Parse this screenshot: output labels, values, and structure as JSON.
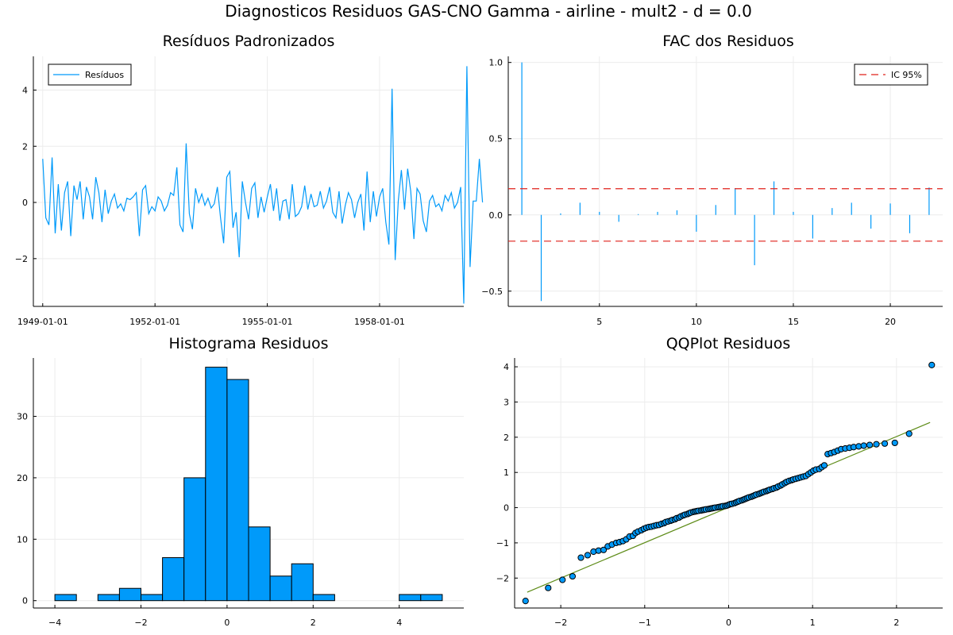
{
  "page_title": "Diagnosticos Residuos  GAS-CNO Gamma - airline - mult2 - d = 0.0",
  "colors": {
    "series": "#009AFA",
    "ci": "#E26F46",
    "ci_red": "#E0201B",
    "qq_line": "#5E8C18",
    "grid": "#ECECEC"
  },
  "chart_data": [
    {
      "id": "residuals",
      "type": "line",
      "title": "Resíduos Padronizados",
      "legend": {
        "entries": [
          "Resíduos"
        ],
        "position": "top-left"
      },
      "x_tick_labels": [
        "1949-01-01",
        "1952-01-01",
        "1955-01-01",
        "1958-01-01"
      ],
      "x_tick_index": [
        0,
        36,
        72,
        108
      ],
      "x_range": [
        -3,
        135
      ],
      "y_ticks": [
        -2,
        0,
        2,
        4
      ],
      "y_tick_labels": [
        "−2",
        "0",
        "2",
        "4"
      ],
      "ylim": [
        -3.7,
        5.2
      ],
      "grid": true,
      "values": [
        1.55,
        -0.55,
        -0.8,
        1.6,
        -1.1,
        0.65,
        -1.0,
        0.35,
        0.75,
        -1.2,
        0.6,
        0.1,
        0.75,
        -0.6,
        0.55,
        0.2,
        -0.6,
        0.9,
        0.35,
        -0.7,
        0.45,
        -0.4,
        0.05,
        0.3,
        -0.2,
        -0.05,
        -0.3,
        0.15,
        0.1,
        0.2,
        0.35,
        -1.2,
        0.45,
        0.6,
        -0.4,
        -0.15,
        -0.3,
        0.2,
        0.05,
        -0.3,
        -0.1,
        0.35,
        0.25,
        1.25,
        -0.8,
        -1.05,
        2.1,
        -0.4,
        -0.95,
        0.5,
        0.0,
        0.3,
        -0.1,
        0.15,
        -0.2,
        -0.05,
        0.55,
        -0.55,
        -1.45,
        0.9,
        1.1,
        -0.9,
        -0.35,
        -1.95,
        0.75,
        0.0,
        -0.6,
        0.5,
        0.7,
        -0.55,
        0.2,
        -0.35,
        0.2,
        0.65,
        -0.3,
        0.5,
        -0.65,
        0.05,
        0.1,
        -0.6,
        0.65,
        -0.5,
        -0.4,
        -0.15,
        0.6,
        -0.25,
        0.3,
        -0.15,
        -0.1,
        0.4,
        -0.2,
        0.05,
        0.55,
        -0.35,
        -0.55,
        0.4,
        -0.75,
        -0.1,
        0.35,
        0.1,
        -0.55,
        0.0,
        0.3,
        -1.0,
        1.1,
        -0.7,
        0.4,
        -0.5,
        0.2,
        0.5,
        -0.7,
        -1.5,
        4.05,
        -2.05,
        0.05,
        1.15,
        -0.25,
        1.2,
        0.4,
        -1.3,
        0.5,
        0.3,
        -0.65,
        -1.05,
        0.05,
        0.25,
        -0.15,
        -0.05,
        -0.3,
        0.25,
        0.05,
        0.35,
        -0.2,
        0.0,
        0.55,
        -3.6,
        4.85,
        -2.3,
        0.05,
        0.05,
        1.55,
        0.0
      ],
      "series_name": "Resíduos"
    },
    {
      "id": "acf",
      "type": "bar",
      "title": "FAC dos Residuos",
      "legend": {
        "entries": [
          "IC 95%"
        ],
        "position": "top-right"
      },
      "lags": [
        1,
        2,
        3,
        4,
        5,
        6,
        7,
        8,
        9,
        10,
        11,
        12,
        13,
        14,
        15,
        16,
        17,
        18,
        19,
        20,
        21,
        22
      ],
      "values": [
        1.0,
        -0.565,
        0.01,
        0.08,
        0.02,
        -0.045,
        0.005,
        0.02,
        0.03,
        -0.11,
        0.065,
        0.175,
        -0.33,
        0.22,
        0.02,
        -0.155,
        0.045,
        0.08,
        -0.09,
        0.075,
        -0.12,
        0.18
      ],
      "ci": 0.172,
      "x_ticks": [
        5,
        10,
        15,
        20
      ],
      "y_ticks": [
        -0.5,
        0.0,
        0.5,
        1.0
      ],
      "y_tick_labels": [
        "−0.5",
        "0.0",
        "0.5",
        "1.0"
      ],
      "xlim": [
        0.3,
        22.7
      ],
      "ylim": [
        -0.6,
        1.04
      ],
      "grid": true
    },
    {
      "id": "histogram",
      "type": "bar",
      "title": "Histograma Residuos",
      "bins": [
        {
          "x0": -4.0,
          "x1": -3.5,
          "count": 1
        },
        {
          "x0": -3.5,
          "x1": -3.0,
          "count": 0
        },
        {
          "x0": -3.0,
          "x1": -2.5,
          "count": 1
        },
        {
          "x0": -2.5,
          "x1": -2.0,
          "count": 2
        },
        {
          "x0": -2.0,
          "x1": -1.5,
          "count": 1
        },
        {
          "x0": -1.5,
          "x1": -1.0,
          "count": 7
        },
        {
          "x0": -1.0,
          "x1": -0.5,
          "count": 20
        },
        {
          "x0": -0.5,
          "x1": 0.0,
          "count": 38
        },
        {
          "x0": 0.0,
          "x1": 0.5,
          "count": 36
        },
        {
          "x0": 0.5,
          "x1": 1.0,
          "count": 12
        },
        {
          "x0": 1.0,
          "x1": 1.5,
          "count": 4
        },
        {
          "x0": 1.5,
          "x1": 2.0,
          "count": 6
        },
        {
          "x0": 2.0,
          "x1": 2.5,
          "count": 1
        },
        {
          "x0": 2.5,
          "x1": 3.0,
          "count": 0
        },
        {
          "x0": 3.0,
          "x1": 3.5,
          "count": 0
        },
        {
          "x0": 3.5,
          "x1": 4.0,
          "count": 0
        },
        {
          "x0": 4.0,
          "x1": 4.5,
          "count": 1
        },
        {
          "x0": 4.5,
          "x1": 5.0,
          "count": 1
        }
      ],
      "x_ticks": [
        -4,
        -2,
        0,
        2,
        4
      ],
      "x_tick_labels": [
        "−4",
        "−2",
        "0",
        "2",
        "4"
      ],
      "y_ticks": [
        0,
        10,
        20,
        30
      ],
      "xlim": [
        -4.5,
        5.5
      ],
      "ylim": [
        -1.2,
        39.5
      ],
      "grid": true
    },
    {
      "id": "qqplot",
      "type": "scatter",
      "title": "QQPlot Residuos",
      "x_ticks": [
        -2,
        -1,
        0,
        1,
        2
      ],
      "x_tick_labels": [
        "−2",
        "−1",
        "0",
        "1",
        "2"
      ],
      "y_ticks": [
        -2,
        -1,
        0,
        1,
        2,
        3,
        4
      ],
      "y_tick_labels": [
        "−2",
        "−1",
        "0",
        "1",
        "2",
        "3",
        "4"
      ],
      "xlim": [
        -2.55,
        2.55
      ],
      "ylim": [
        -2.85,
        4.25
      ],
      "reference_line": {
        "x": [
          -2.4,
          2.4
        ],
        "y": [
          -2.4,
          2.42
        ]
      },
      "points": {
        "x": [
          -2.42,
          -2.15,
          -1.98,
          -1.86,
          -1.76,
          -1.68,
          -1.61,
          -1.55,
          -1.49,
          -1.44,
          -1.39,
          -1.34,
          -1.3,
          -1.26,
          -1.22,
          -1.18,
          -1.14,
          -1.11,
          -1.08,
          -1.04,
          -1.01,
          -0.98,
          -0.95,
          -0.92,
          -0.89,
          -0.86,
          -0.83,
          -0.8,
          -0.77,
          -0.75,
          -0.72,
          -0.69,
          -0.67,
          -0.64,
          -0.62,
          -0.59,
          -0.57,
          -0.54,
          -0.52,
          -0.49,
          -0.47,
          -0.45,
          -0.42,
          -0.4,
          -0.38,
          -0.36,
          -0.33,
          -0.31,
          -0.29,
          -0.27,
          -0.24,
          -0.22,
          -0.2,
          -0.18,
          -0.16,
          -0.13,
          -0.11,
          -0.09,
          -0.07,
          -0.04,
          -0.02,
          0.0,
          0.02,
          0.04,
          0.07,
          0.09,
          0.11,
          0.13,
          0.16,
          0.18,
          0.2,
          0.22,
          0.24,
          0.27,
          0.29,
          0.31,
          0.33,
          0.36,
          0.38,
          0.4,
          0.42,
          0.45,
          0.47,
          0.49,
          0.52,
          0.54,
          0.57,
          0.59,
          0.62,
          0.64,
          0.67,
          0.69,
          0.72,
          0.75,
          0.77,
          0.8,
          0.83,
          0.86,
          0.89,
          0.92,
          0.95,
          0.98,
          1.01,
          1.04,
          1.08,
          1.11,
          1.14,
          1.18,
          1.22,
          1.26,
          1.3,
          1.34,
          1.39,
          1.44,
          1.49,
          1.55,
          1.61,
          1.68,
          1.76,
          1.86,
          1.98,
          2.15,
          2.42
        ],
        "y": [
          -2.65,
          -2.28,
          -2.05,
          -1.95,
          -1.42,
          -1.35,
          -1.25,
          -1.22,
          -1.2,
          -1.1,
          -1.05,
          -1.0,
          -0.98,
          -0.95,
          -0.9,
          -0.82,
          -0.8,
          -0.72,
          -0.68,
          -0.64,
          -0.6,
          -0.57,
          -0.55,
          -0.54,
          -0.52,
          -0.5,
          -0.49,
          -0.46,
          -0.44,
          -0.41,
          -0.39,
          -0.37,
          -0.35,
          -0.33,
          -0.3,
          -0.28,
          -0.25,
          -0.22,
          -0.2,
          -0.18,
          -0.16,
          -0.14,
          -0.12,
          -0.11,
          -0.1,
          -0.09,
          -0.08,
          -0.07,
          -0.06,
          -0.05,
          -0.04,
          -0.03,
          -0.02,
          -0.01,
          0.0,
          0.01,
          0.02,
          0.03,
          0.04,
          0.05,
          0.06,
          0.08,
          0.1,
          0.11,
          0.13,
          0.15,
          0.17,
          0.19,
          0.21,
          0.23,
          0.25,
          0.27,
          0.29,
          0.31,
          0.33,
          0.35,
          0.37,
          0.39,
          0.41,
          0.43,
          0.45,
          0.47,
          0.49,
          0.51,
          0.53,
          0.55,
          0.57,
          0.6,
          0.63,
          0.66,
          0.7,
          0.73,
          0.76,
          0.78,
          0.8,
          0.82,
          0.84,
          0.86,
          0.88,
          0.9,
          0.95,
          1.0,
          1.05,
          1.08,
          1.1,
          1.15,
          1.2,
          1.52,
          1.55,
          1.58,
          1.62,
          1.66,
          1.68,
          1.7,
          1.72,
          1.74,
          1.76,
          1.78,
          1.8,
          1.82,
          1.84,
          2.1,
          4.05
        ]
      },
      "grid": true
    }
  ]
}
